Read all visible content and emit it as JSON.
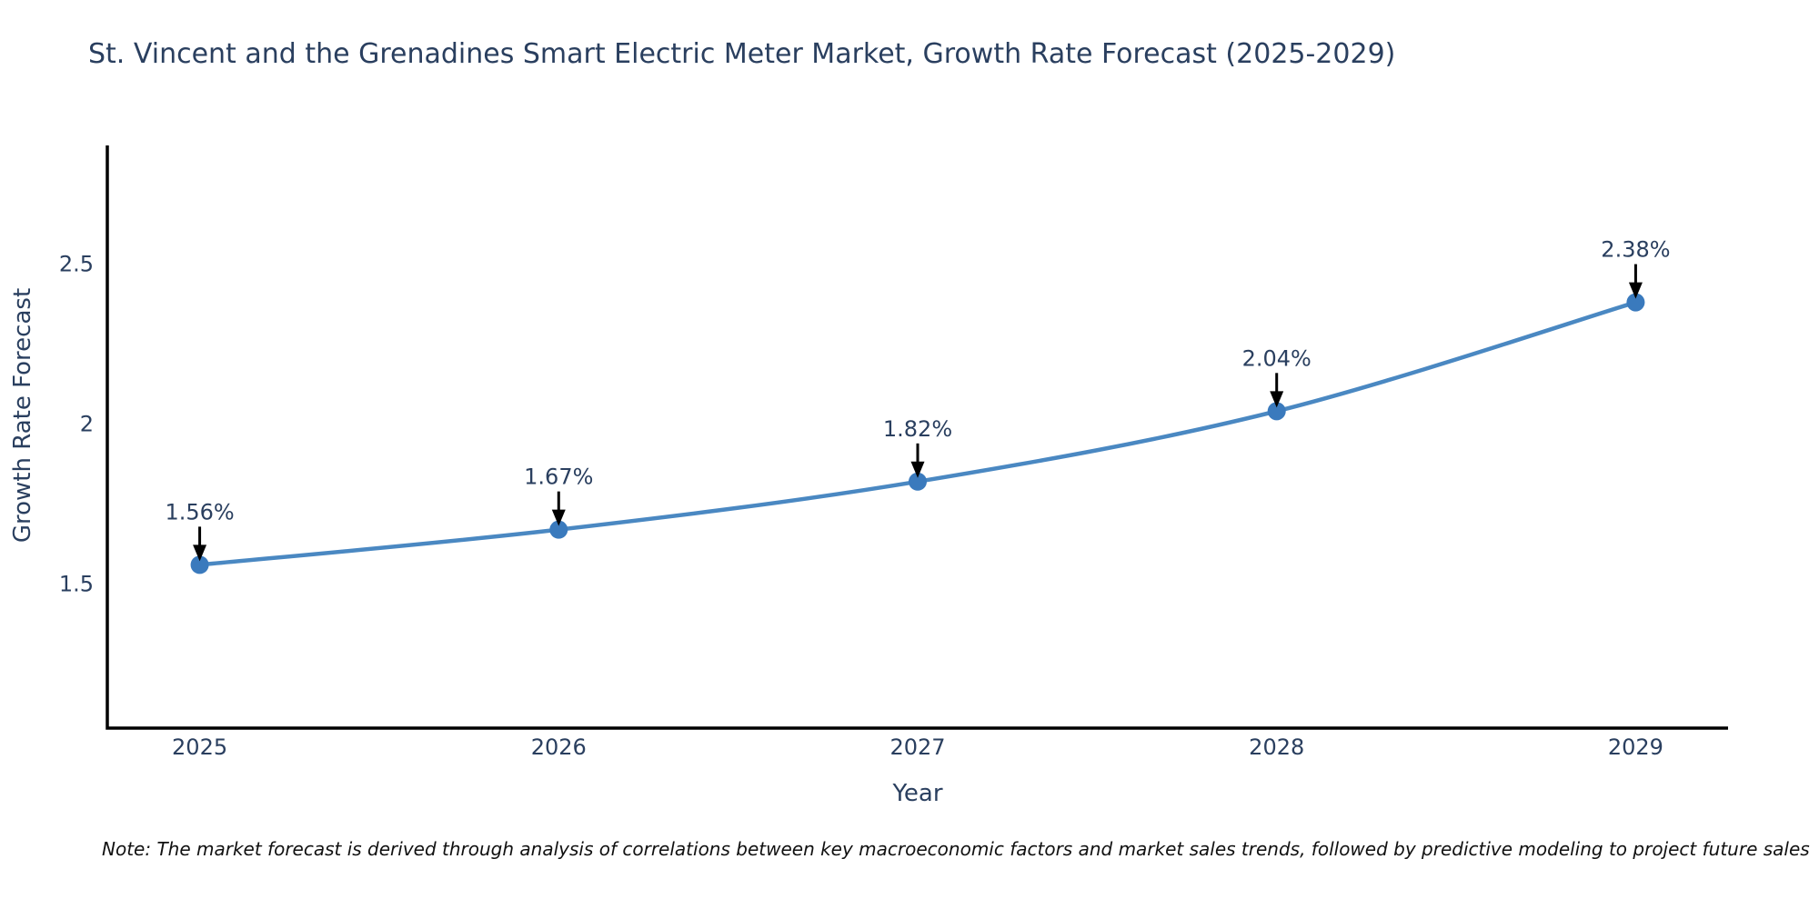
{
  "title": "St. Vincent and the Grenadines Smart Electric Meter Market, Growth Rate Forecast (2025-2029)",
  "note": "Note: The market forecast is derived through analysis of correlations between key macroeconomic factors and market sales trends, followed by predictive modeling to project future sales",
  "axes": {
    "x_title": "Year",
    "y_title": "Growth Rate Forecast",
    "x_tick_labels": [
      "2025",
      "2026",
      "2027",
      "2028",
      "2029"
    ],
    "y_tick_labels": [
      "1.5",
      "2",
      "2.5"
    ],
    "y_tick_values": [
      1.5,
      2,
      2.5
    ]
  },
  "colors": {
    "text": "#2a3f5f",
    "axis_line": "#000000",
    "line": "#4a88c2",
    "marker": "#3a7abd",
    "arrow": "#000000",
    "annotation_text": "#2a3f5f",
    "background": "#ffffff"
  },
  "chart_data": {
    "type": "line",
    "title": "St. Vincent and the Grenadines Smart Electric Meter Market, Growth Rate Forecast (2025-2029)",
    "xlabel": "Year",
    "ylabel": "Growth Rate Forecast",
    "categories": [
      "2025",
      "2026",
      "2027",
      "2028",
      "2029"
    ],
    "series": [
      {
        "name": "Growth Rate Forecast",
        "values": [
          1.56,
          1.67,
          1.82,
          2.04,
          2.38
        ]
      }
    ],
    "point_labels": [
      "1.56%",
      "1.67%",
      "1.82%",
      "2.04%",
      "2.38%"
    ],
    "ylim": [
      1.05,
      2.87
    ],
    "yticks": [
      1.5,
      2,
      2.5
    ],
    "grid": false,
    "legend_position": "none",
    "line_shape": "spline",
    "annotations": "each data point labeled with percentage value and a downward black arrow pointing at the marker"
  }
}
